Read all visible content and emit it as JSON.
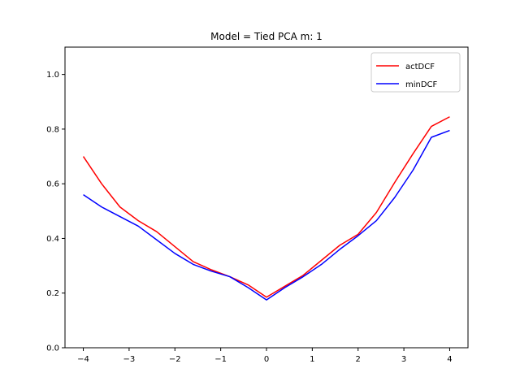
{
  "chart_data": {
    "type": "line",
    "title": "Model = Tied PCA m: 1",
    "xlabel": "",
    "ylabel": "",
    "xlim": [
      -4.4,
      4.4
    ],
    "ylim": [
      0.0,
      1.1
    ],
    "xticks": [
      -4,
      -3,
      -2,
      -1,
      0,
      1,
      2,
      3,
      4
    ],
    "xtick_labels": [
      "−4",
      "−3",
      "−2",
      "−1",
      "0",
      "1",
      "2",
      "3",
      "4"
    ],
    "yticks": [
      0.0,
      0.2,
      0.4,
      0.6,
      0.8,
      1.0
    ],
    "ytick_labels": [
      "0.0",
      "0.2",
      "0.4",
      "0.6",
      "0.8",
      "1.0"
    ],
    "legend_position": "top-right",
    "grid": false,
    "x": [
      -4.0,
      -3.6,
      -3.2,
      -2.8,
      -2.4,
      -2.0,
      -1.6,
      -1.2,
      -0.8,
      -0.4,
      0.0,
      0.4,
      0.8,
      1.2,
      1.6,
      2.0,
      2.4,
      2.8,
      3.2,
      3.6,
      4.0
    ],
    "series": [
      {
        "name": "actDCF",
        "color": "#ff0000",
        "values": [
          0.7,
          0.6,
          0.515,
          0.465,
          0.425,
          0.37,
          0.315,
          0.285,
          0.26,
          0.23,
          0.185,
          0.225,
          0.265,
          0.32,
          0.375,
          0.415,
          0.495,
          0.605,
          0.71,
          0.81,
          0.845
        ]
      },
      {
        "name": "minDCF",
        "color": "#0000ff",
        "values": [
          0.56,
          0.515,
          0.48,
          0.445,
          0.395,
          0.345,
          0.305,
          0.28,
          0.26,
          0.22,
          0.175,
          0.22,
          0.26,
          0.305,
          0.36,
          0.41,
          0.465,
          0.55,
          0.65,
          0.77,
          0.795
        ]
      }
    ]
  }
}
